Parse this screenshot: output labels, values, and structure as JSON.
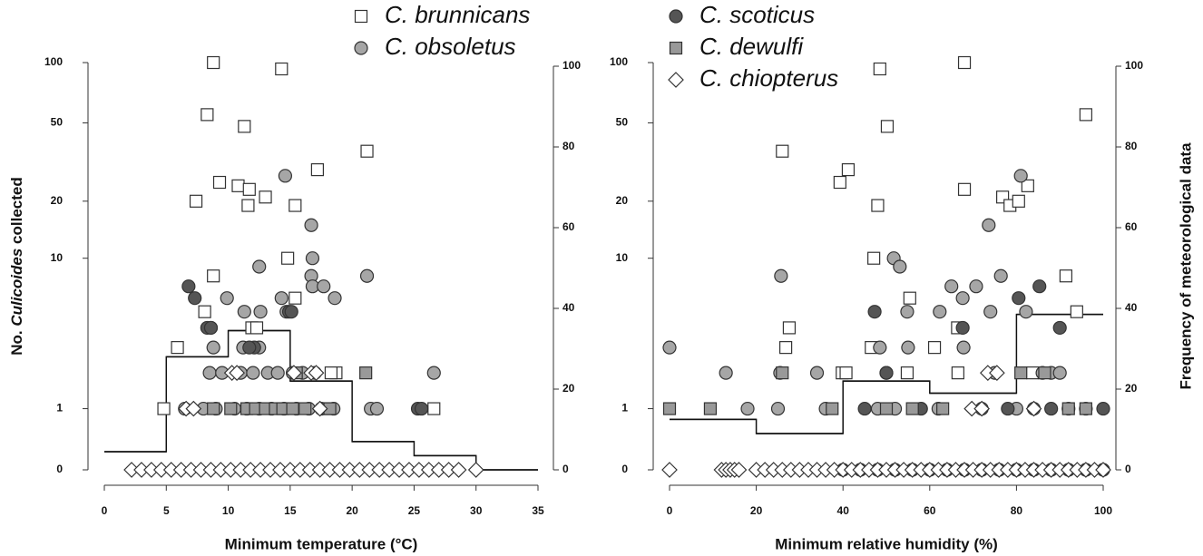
{
  "chart_data": [
    {
      "type": "scatter",
      "xlabel": "Minimum temperature (°C)",
      "ylabel": [
        "No. ",
        "Culicoides",
        " collected"
      ],
      "xlim": [
        0,
        35
      ],
      "xticks": [
        0,
        5,
        10,
        15,
        20,
        25,
        30,
        35
      ],
      "ylim": [
        0,
        100
      ],
      "yticks": [
        0,
        1,
        10,
        20,
        50,
        100
      ],
      "yscale": "log1p",
      "y2lim": [
        0,
        100
      ],
      "y2ticks": [
        0,
        20,
        40,
        60,
        80,
        100
      ],
      "series": [
        {
          "name": "C. brunnicans",
          "marker": "square",
          "color": "#ffffff",
          "x": [
            8.8,
            8.3,
            14.3,
            11.3,
            21.2,
            9.3,
            7.4,
            10.8,
            11.7,
            13.0,
            17.2,
            11.6,
            15.4,
            14.8,
            8.8,
            15.4,
            8.1,
            5.9,
            11.9,
            12.3,
            4.8,
            26.6,
            18.7,
            18.3
          ],
          "values": [
            100,
            55,
            93,
            48,
            36,
            25,
            20,
            24,
            23,
            21,
            29,
            19,
            19,
            10,
            8,
            6,
            5,
            3,
            4,
            4,
            1,
            1,
            2,
            2
          ]
        },
        {
          "name": "C. obsoletus",
          "marker": "circle",
          "color": "#a6a6a6",
          "x": [
            14.6,
            16.7,
            16.8,
            16.7,
            21.2,
            12.5,
            16.8,
            17.7,
            18.6,
            9.9,
            14.3,
            8.6,
            11.3,
            12.6,
            14.7,
            8.8,
            11.2,
            12.5,
            15.2,
            8.5,
            9.5,
            11,
            12,
            13.2,
            14,
            16,
            17,
            26.6,
            6.5,
            8,
            9,
            10.5,
            11.5,
            12.5,
            13.5,
            14.5,
            15.5,
            16.5,
            17.5,
            18.5,
            21.5,
            22
          ],
          "values": [
            27,
            15,
            10,
            8,
            8,
            9,
            7,
            7,
            6,
            6,
            6,
            4,
            5,
            5,
            5,
            3,
            3,
            3,
            2,
            2,
            2,
            2,
            2,
            2,
            2,
            2,
            2,
            2,
            1,
            1,
            1,
            1,
            1,
            1,
            1,
            1,
            1,
            1,
            1,
            1,
            1,
            1
          ]
        },
        {
          "name": "C. scoticus",
          "marker": "circle",
          "color": "#555555",
          "x": [
            6.8,
            7.3,
            8.3,
            8.6,
            14.9,
            15.1,
            25.3,
            25.6,
            12.1,
            11.7
          ],
          "values": [
            7,
            6,
            4,
            4,
            5,
            5,
            1,
            1,
            3,
            3
          ]
        },
        {
          "name": "C. dewulfi",
          "marker": "square",
          "color": "#999999",
          "x": [
            21.1,
            15.5,
            8.8,
            10.2,
            11.5,
            12.2,
            13,
            13.8,
            14.4,
            15.2,
            16.2,
            17.8,
            18.2
          ],
          "values": [
            2,
            2,
            1,
            1,
            1,
            1,
            1,
            1,
            1,
            1,
            1,
            1,
            1
          ]
        },
        {
          "name": "C. chiopterus",
          "marker": "diamond",
          "color": "#ffffff",
          "x": [
            10.3,
            10.7,
            15.3,
            16.7,
            17.1,
            6.6,
            7.2,
            17.4,
            2.2,
            3,
            3.8,
            4.6,
            5.4,
            6.2,
            7,
            7.8,
            8.6,
            9.4,
            10.2,
            11,
            11.8,
            12.6,
            13.4,
            14.2,
            15,
            15.8,
            16.6,
            17.4,
            18.2,
            19,
            19.8,
            20.6,
            21.4,
            22.2,
            23,
            23.8,
            24.6,
            25.4,
            26.2,
            27,
            27.8,
            28.6,
            30
          ],
          "values": [
            2,
            2,
            2,
            2,
            2,
            1,
            1,
            1,
            0,
            0,
            0,
            0,
            0,
            0,
            0,
            0,
            0,
            0,
            0,
            0,
            0,
            0,
            0,
            0,
            0,
            0,
            0,
            0,
            0,
            0,
            0,
            0,
            0,
            0,
            0,
            0,
            0,
            0,
            0,
            0,
            0,
            0,
            0
          ]
        }
      ],
      "step": {
        "axis": "y2",
        "bins": [
          0,
          5,
          10,
          15,
          20,
          25,
          30,
          35
        ],
        "values": [
          4.5,
          28,
          34.5,
          22,
          7,
          3.5,
          0
        ]
      }
    },
    {
      "type": "scatter",
      "xlabel": "Minimum relative humidity (%)",
      "y2label": "Frequency of meteorological data",
      "xlim": [
        0,
        100
      ],
      "xticks": [
        0,
        20,
        40,
        60,
        80,
        100
      ],
      "ylim": [
        0,
        100
      ],
      "yticks": [
        0,
        1,
        10,
        20,
        50,
        100
      ],
      "yscale": "log1p",
      "y2lim": [
        0,
        100
      ],
      "y2ticks": [
        0,
        20,
        40,
        60,
        80,
        100
      ],
      "series": [
        {
          "marker": "square",
          "color": "#ffffff",
          "x": [
            48.5,
            68,
            96,
            50.2,
            26,
            41.2,
            39.3,
            68,
            82.6,
            76.8,
            78.5,
            80.5,
            48,
            47.1,
            55.4,
            91.4,
            27.6,
            66.4,
            93.9,
            26.8,
            46.5,
            54.8,
            66.5,
            61.1,
            39.8,
            40.7,
            83.7
          ],
          "values": [
            93,
            100,
            55,
            48,
            36,
            29,
            25,
            23,
            24,
            21,
            19,
            20,
            19,
            10,
            6,
            8,
            4,
            4,
            5,
            3,
            3,
            2,
            2,
            3,
            2,
            2,
            2
          ]
        },
        {
          "marker": "circle",
          "color": "#a6a6a6",
          "x": [
            81,
            73.6,
            25.7,
            51.7,
            53.1,
            76.4,
            70.7,
            65,
            67.6,
            74,
            62.3,
            54.8,
            48.5,
            55,
            67.8,
            82.2,
            0,
            13,
            25.5,
            34,
            50,
            75,
            86,
            88,
            90,
            18,
            25,
            36,
            48,
            52,
            62,
            72,
            80,
            84,
            92,
            96
          ],
          "values": [
            27,
            15,
            8,
            10,
            9,
            8,
            7,
            7,
            6,
            5,
            5,
            5,
            3,
            3,
            3,
            5,
            3,
            2,
            2,
            2,
            2,
            2,
            2,
            2,
            2,
            1,
            1,
            1,
            1,
            1,
            1,
            1,
            1,
            1,
            1,
            1
          ]
        },
        {
          "marker": "circle",
          "color": "#555555",
          "x": [
            47.3,
            67.6,
            80.5,
            85.3,
            90,
            100,
            50,
            45,
            58,
            78,
            88,
            40,
            44,
            48,
            52,
            56,
            60,
            64,
            68,
            72,
            76,
            80,
            84,
            88,
            92,
            96,
            100
          ],
          "values": [
            5,
            4,
            6,
            7,
            4,
            1,
            2,
            1,
            1,
            1,
            1,
            0,
            0,
            0,
            0,
            0,
            0,
            0,
            0,
            0,
            0,
            0,
            0,
            0,
            0,
            0,
            0
          ]
        },
        {
          "marker": "square",
          "color": "#999999",
          "x": [
            0,
            9.4,
            26,
            81,
            86.5,
            37.5,
            50,
            56,
            63,
            92,
            96
          ],
          "values": [
            1,
            1,
            2,
            2,
            2,
            1,
            1,
            1,
            1,
            1,
            1
          ]
        },
        {
          "marker": "diamond",
          "color": "#ffffff",
          "x": [
            73.4,
            75.5,
            69.7,
            72,
            84,
            0,
            12,
            13,
            14,
            15,
            16,
            20,
            22,
            24,
            26,
            28,
            30,
            32,
            34,
            36,
            38,
            40,
            42,
            44,
            46,
            48,
            50,
            52,
            54,
            56,
            58,
            60,
            62,
            64,
            66,
            68,
            70,
            72,
            74,
            76,
            78,
            80,
            82,
            84,
            86,
            88,
            90,
            92,
            94,
            96,
            98,
            100
          ],
          "values": [
            2,
            2,
            1,
            1,
            1,
            0,
            0,
            0,
            0,
            0,
            0,
            0,
            0,
            0,
            0,
            0,
            0,
            0,
            0,
            0,
            0,
            0,
            0,
            0,
            0,
            0,
            0,
            0,
            0,
            0,
            0,
            0,
            0,
            0,
            0,
            0,
            0,
            0,
            0,
            0,
            0,
            0,
            0,
            0,
            0,
            0,
            0,
            0,
            0,
            0,
            0,
            0
          ]
        }
      ],
      "step": {
        "axis": "y2",
        "bins": [
          0,
          20,
          40,
          60,
          80,
          100
        ],
        "values": [
          12.5,
          9,
          22,
          19,
          38.5
        ]
      }
    }
  ]
}
